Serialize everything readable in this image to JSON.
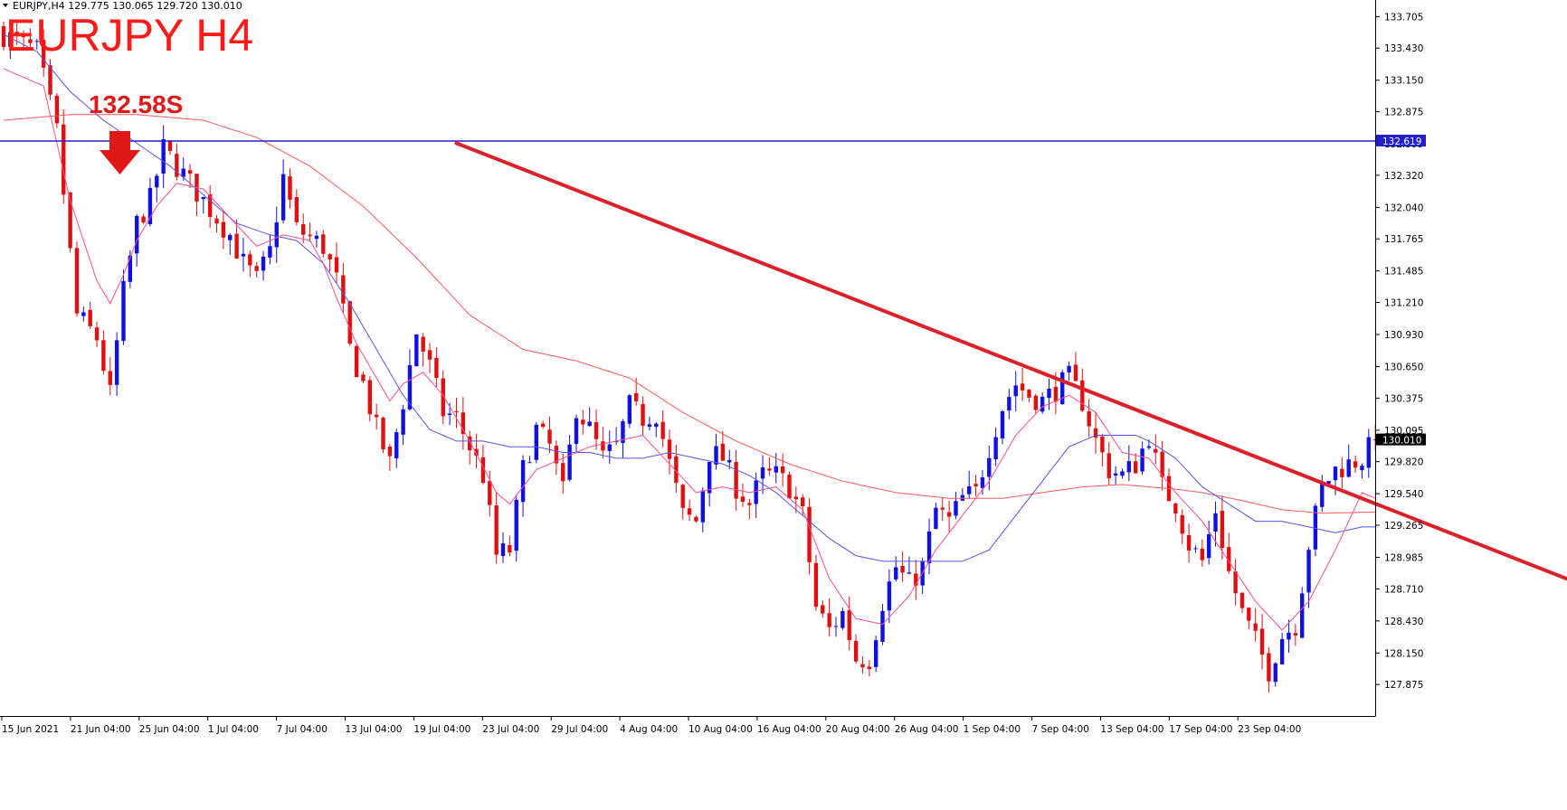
{
  "window": {
    "info_line": "EURJPY,H4  129.775 130.065 129.720 130.010",
    "caption": "EURJPY H4",
    "arrow_label": "132.58S"
  },
  "colors": {
    "bull": "#1010e0",
    "bear": "#e01010",
    "ma_fast": "#ff4d8f",
    "ma_mid": "#5555ee",
    "ma_slow": "#ff5a5a",
    "level_line": "#2020cc",
    "trend_line": "#dd1f2a",
    "caption": "#ff1a1a",
    "axis": "#000000"
  },
  "chart_data": {
    "type": "candlestick",
    "symbol": "EURJPY",
    "timeframe": "H4",
    "ylim": [
      127.6,
      133.85
    ],
    "y_ticks": [
      "133.705",
      "133.430",
      "133.150",
      "132.875",
      "132.595",
      "132.320",
      "132.040",
      "131.765",
      "131.485",
      "131.210",
      "130.930",
      "130.650",
      "130.375",
      "130.095",
      "129.820",
      "129.540",
      "129.265",
      "128.985",
      "128.710",
      "128.430",
      "128.150",
      "127.875"
    ],
    "x_ticks": [
      "15 Jun 2021",
      "21 Jun 04:00",
      "25 Jun 04:00",
      "1 Jul 04:00",
      "7 Jul 04:00",
      "13 Jul 04:00",
      "19 Jul 04:00",
      "23 Jul 04:00",
      "29 Jul 04:00",
      "4 Aug 04:00",
      "10 Aug 04:00",
      "16 Aug 04:00",
      "20 Aug 04:00",
      "26 Aug 04:00",
      "1 Sep 04:00",
      "7 Sep 04:00",
      "13 Sep 04:00",
      "17 Sep 04:00",
      "23 Sep 04:00"
    ],
    "horizontal_level": {
      "price": 132.619,
      "label": "132.619"
    },
    "current_price": {
      "price": 130.01,
      "label": "130.010"
    },
    "trend_line": {
      "from": {
        "bar": 68,
        "price": 132.6
      },
      "to": {
        "bar": 250,
        "price": 128.45
      }
    },
    "close_anchors": [
      [
        0,
        133.55
      ],
      [
        5,
        133.4
      ],
      [
        8,
        132.7
      ],
      [
        11,
        131.1
      ],
      [
        14,
        130.9
      ],
      [
        16,
        130.4
      ],
      [
        18,
        131.3
      ],
      [
        20,
        131.9
      ],
      [
        22,
        132.1
      ],
      [
        24,
        132.55
      ],
      [
        26,
        132.4
      ],
      [
        30,
        132.1
      ],
      [
        34,
        131.8
      ],
      [
        36,
        131.55
      ],
      [
        38,
        131.4
      ],
      [
        40,
        131.65
      ],
      [
        42,
        132.3
      ],
      [
        44,
        131.85
      ],
      [
        48,
        131.7
      ],
      [
        50,
        131.4
      ],
      [
        52,
        130.8
      ],
      [
        54,
        130.5
      ],
      [
        56,
        130.1
      ],
      [
        58,
        129.8
      ],
      [
        60,
        130.35
      ],
      [
        62,
        130.95
      ],
      [
        64,
        130.65
      ],
      [
        66,
        130.25
      ],
      [
        68,
        130.2
      ],
      [
        70,
        129.95
      ],
      [
        72,
        129.7
      ],
      [
        74,
        129.0
      ],
      [
        76,
        129.05
      ],
      [
        78,
        129.75
      ],
      [
        80,
        130.1
      ],
      [
        82,
        129.95
      ],
      [
        84,
        129.55
      ],
      [
        86,
        130.3
      ],
      [
        88,
        130.1
      ],
      [
        90,
        129.85
      ],
      [
        92,
        129.95
      ],
      [
        94,
        130.3
      ],
      [
        96,
        130.2
      ],
      [
        98,
        130.25
      ],
      [
        100,
        129.8
      ],
      [
        102,
        129.35
      ],
      [
        104,
        129.3
      ],
      [
        106,
        129.9
      ],
      [
        108,
        129.85
      ],
      [
        110,
        129.6
      ],
      [
        112,
        129.45
      ],
      [
        114,
        129.7
      ],
      [
        116,
        129.7
      ],
      [
        118,
        129.6
      ],
      [
        120,
        129.35
      ],
      [
        122,
        128.55
      ],
      [
        124,
        128.35
      ],
      [
        126,
        128.5
      ],
      [
        128,
        128.1
      ],
      [
        130,
        128.1
      ],
      [
        132,
        128.6
      ],
      [
        134,
        128.9
      ],
      [
        136,
        128.75
      ],
      [
        138,
        128.9
      ],
      [
        140,
        129.4
      ],
      [
        142,
        129.3
      ],
      [
        144,
        129.5
      ],
      [
        146,
        129.55
      ],
      [
        148,
        129.95
      ],
      [
        150,
        130.3
      ],
      [
        152,
        130.5
      ],
      [
        154,
        130.4
      ],
      [
        156,
        130.35
      ],
      [
        158,
        130.45
      ],
      [
        160,
        130.55
      ],
      [
        162,
        130.35
      ],
      [
        164,
        130.0
      ],
      [
        166,
        129.75
      ],
      [
        168,
        129.7
      ],
      [
        170,
        129.8
      ],
      [
        172,
        130.05
      ],
      [
        174,
        129.6
      ],
      [
        176,
        129.45
      ],
      [
        178,
        129.1
      ],
      [
        180,
        128.95
      ],
      [
        182,
        129.4
      ],
      [
        184,
        128.85
      ],
      [
        186,
        128.5
      ],
      [
        188,
        128.25
      ],
      [
        190,
        128.0
      ],
      [
        192,
        128.3
      ],
      [
        194,
        128.4
      ],
      [
        196,
        129.1
      ],
      [
        198,
        129.6
      ],
      [
        200,
        129.75
      ],
      [
        202,
        129.8
      ],
      [
        204,
        129.85
      ],
      [
        206,
        130.01
      ]
    ],
    "sma_fast_anchors": [
      [
        0,
        133.25
      ],
      [
        6,
        133.1
      ],
      [
        10,
        132.1
      ],
      [
        14,
        131.4
      ],
      [
        16,
        131.2
      ],
      [
        18,
        131.45
      ],
      [
        20,
        131.75
      ],
      [
        23,
        132.05
      ],
      [
        26,
        132.25
      ],
      [
        30,
        132.2
      ],
      [
        34,
        131.95
      ],
      [
        38,
        131.7
      ],
      [
        42,
        131.8
      ],
      [
        46,
        131.75
      ],
      [
        48,
        131.55
      ],
      [
        50,
        131.25
      ],
      [
        53,
        130.85
      ],
      [
        56,
        130.55
      ],
      [
        58,
        130.35
      ],
      [
        60,
        130.5
      ],
      [
        63,
        130.6
      ],
      [
        66,
        130.4
      ],
      [
        70,
        130.0
      ],
      [
        74,
        129.55
      ],
      [
        76,
        129.45
      ],
      [
        78,
        129.6
      ],
      [
        80,
        129.75
      ],
      [
        84,
        129.85
      ],
      [
        88,
        129.95
      ],
      [
        92,
        130.0
      ],
      [
        96,
        130.05
      ],
      [
        100,
        129.8
      ],
      [
        104,
        129.55
      ],
      [
        108,
        129.6
      ],
      [
        112,
        129.55
      ],
      [
        116,
        129.6
      ],
      [
        120,
        129.4
      ],
      [
        124,
        128.8
      ],
      [
        128,
        128.45
      ],
      [
        132,
        128.4
      ],
      [
        136,
        128.65
      ],
      [
        140,
        129.05
      ],
      [
        144,
        129.35
      ],
      [
        148,
        129.65
      ],
      [
        152,
        130.05
      ],
      [
        156,
        130.3
      ],
      [
        160,
        130.4
      ],
      [
        164,
        130.25
      ],
      [
        168,
        129.9
      ],
      [
        172,
        129.85
      ],
      [
        176,
        129.55
      ],
      [
        180,
        129.3
      ],
      [
        184,
        128.95
      ],
      [
        188,
        128.6
      ],
      [
        192,
        128.35
      ],
      [
        196,
        128.6
      ],
      [
        200,
        129.05
      ],
      [
        204,
        129.55
      ],
      [
        206,
        129.5
      ]
    ],
    "sma_mid_anchors": [
      [
        0,
        133.55
      ],
      [
        5,
        133.4
      ],
      [
        10,
        133.05
      ],
      [
        15,
        132.8
      ],
      [
        20,
        132.6
      ],
      [
        25,
        132.4
      ],
      [
        30,
        132.15
      ],
      [
        35,
        131.9
      ],
      [
        40,
        131.8
      ],
      [
        44,
        131.75
      ],
      [
        48,
        131.55
      ],
      [
        52,
        131.2
      ],
      [
        56,
        130.8
      ],
      [
        60,
        130.4
      ],
      [
        64,
        130.1
      ],
      [
        68,
        130.0
      ],
      [
        72,
        130.0
      ],
      [
        76,
        129.95
      ],
      [
        80,
        129.95
      ],
      [
        84,
        129.9
      ],
      [
        88,
        129.9
      ],
      [
        92,
        129.85
      ],
      [
        96,
        129.85
      ],
      [
        100,
        129.9
      ],
      [
        104,
        129.85
      ],
      [
        108,
        129.8
      ],
      [
        112,
        129.7
      ],
      [
        116,
        129.55
      ],
      [
        120,
        129.35
      ],
      [
        124,
        129.15
      ],
      [
        128,
        129.0
      ],
      [
        132,
        128.95
      ],
      [
        136,
        128.95
      ],
      [
        140,
        128.95
      ],
      [
        144,
        128.95
      ],
      [
        148,
        129.05
      ],
      [
        152,
        129.35
      ],
      [
        156,
        129.65
      ],
      [
        160,
        129.95
      ],
      [
        164,
        130.05
      ],
      [
        168,
        130.05
      ],
      [
        170,
        130.05
      ],
      [
        172,
        130.0
      ],
      [
        176,
        129.85
      ],
      [
        180,
        129.6
      ],
      [
        184,
        129.45
      ],
      [
        188,
        129.3
      ],
      [
        192,
        129.3
      ],
      [
        196,
        129.25
      ],
      [
        200,
        129.2
      ],
      [
        204,
        129.25
      ],
      [
        206,
        129.25
      ]
    ],
    "sma_slow_anchors": [
      [
        0,
        132.8
      ],
      [
        10,
        132.85
      ],
      [
        20,
        132.85
      ],
      [
        30,
        132.8
      ],
      [
        38,
        132.65
      ],
      [
        46,
        132.4
      ],
      [
        54,
        132.05
      ],
      [
        62,
        131.6
      ],
      [
        70,
        131.1
      ],
      [
        78,
        130.8
      ],
      [
        86,
        130.7
      ],
      [
        94,
        130.55
      ],
      [
        102,
        130.25
      ],
      [
        110,
        130.0
      ],
      [
        118,
        129.8
      ],
      [
        126,
        129.65
      ],
      [
        134,
        129.55
      ],
      [
        142,
        129.5
      ],
      [
        150,
        129.5
      ],
      [
        156,
        129.55
      ],
      [
        162,
        129.6
      ],
      [
        168,
        129.62
      ],
      [
        172,
        129.6
      ],
      [
        176,
        129.58
      ],
      [
        180,
        129.55
      ],
      [
        186,
        129.48
      ],
      [
        192,
        129.4
      ],
      [
        198,
        129.37
      ],
      [
        206,
        129.38
      ]
    ]
  }
}
